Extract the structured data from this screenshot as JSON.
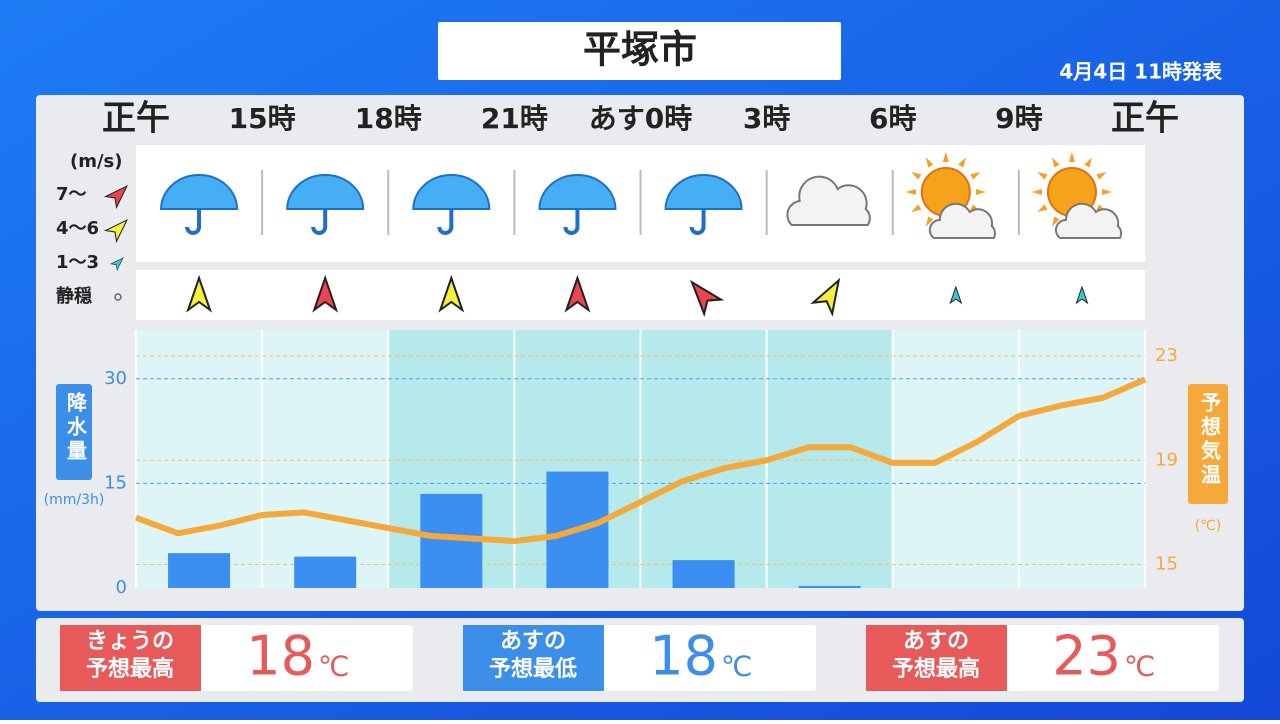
{
  "header": {
    "title": "平塚市",
    "issued": "4月4日 11時発表"
  },
  "chart_data": {
    "type": "combo",
    "xlim": [
      0,
      24
    ],
    "xticks": [
      {
        "value": 0,
        "label": "正午"
      },
      {
        "value": 3,
        "label": "15時"
      },
      {
        "value": 6,
        "label": "18時"
      },
      {
        "value": 9,
        "label": "21時"
      },
      {
        "value": 12,
        "label": "あす0時"
      },
      {
        "value": 15,
        "label": "3時"
      },
      {
        "value": 18,
        "label": "6時"
      },
      {
        "value": 21,
        "label": "9時"
      },
      {
        "value": 24,
        "label": "正午"
      }
    ],
    "weather": [
      "rain",
      "rain",
      "rain",
      "rain",
      "rain",
      "cloudy",
      "sun-cloud",
      "sun-cloud"
    ],
    "wind_unit": "(m/s)",
    "wind_legend": [
      {
        "label": "7〜",
        "color": "#f0424f"
      },
      {
        "label": "4〜6",
        "color": "#f6f03a"
      },
      {
        "label": "1〜3",
        "color": "#36c9d6"
      },
      {
        "label": "静穏",
        "color": "#666666"
      }
    ],
    "wind": [
      {
        "level": 1,
        "rotation": 0
      },
      {
        "level": 0,
        "rotation": 0
      },
      {
        "level": 1,
        "rotation": 0
      },
      {
        "level": 0,
        "rotation": 0
      },
      {
        "level": 0,
        "rotation": -40
      },
      {
        "level": 1,
        "rotation": 30
      },
      {
        "level": 2,
        "rotation": 0
      },
      {
        "level": 2,
        "rotation": 0
      }
    ],
    "y_label": "降水量",
    "y_unit": "(mm/3h)",
    "y2_label": "予想気温",
    "y2_unit": "(℃)",
    "ylim": [
      0,
      37
    ],
    "yticks": [
      0,
      15,
      30
    ],
    "y2lim": [
      14.1,
      24
    ],
    "y2ticks": [
      15,
      19,
      23
    ],
    "series": [
      {
        "name": "降水量",
        "type": "bar",
        "color": "#3b8ff0",
        "x": [
          1.5,
          4.5,
          7.5,
          10.5,
          13.5,
          16.5,
          19.5,
          22.5
        ],
        "values": [
          5,
          4.5,
          13.5,
          16.7,
          4,
          0.3,
          0,
          0
        ]
      },
      {
        "name": "予想気温",
        "type": "line",
        "axis": "y2",
        "color": "#f5a93a",
        "x": [
          0,
          1,
          2,
          3,
          4,
          5,
          6,
          7,
          8,
          9,
          10,
          11,
          12,
          13,
          14,
          15,
          16,
          17,
          18,
          19,
          20,
          21,
          22,
          23,
          24
        ],
        "values": [
          16.8,
          16.2,
          16.5,
          16.9,
          17.0,
          16.7,
          16.4,
          16.1,
          16.0,
          15.9,
          16.1,
          16.6,
          17.4,
          18.2,
          18.7,
          19.0,
          19.5,
          19.5,
          18.9,
          18.9,
          19.7,
          20.7,
          21.1,
          21.4,
          22.1
        ]
      }
    ]
  },
  "summary": [
    {
      "label": "きょうの\n予想最高",
      "value": 18,
      "unit": "℃",
      "color": "#e85a5a"
    },
    {
      "label": "あすの\n予想最低",
      "value": 18,
      "unit": "℃",
      "color": "#3b8fe8"
    },
    {
      "label": "あすの\n予想最高",
      "value": 23,
      "unit": "℃",
      "color": "#e85a5a"
    }
  ]
}
